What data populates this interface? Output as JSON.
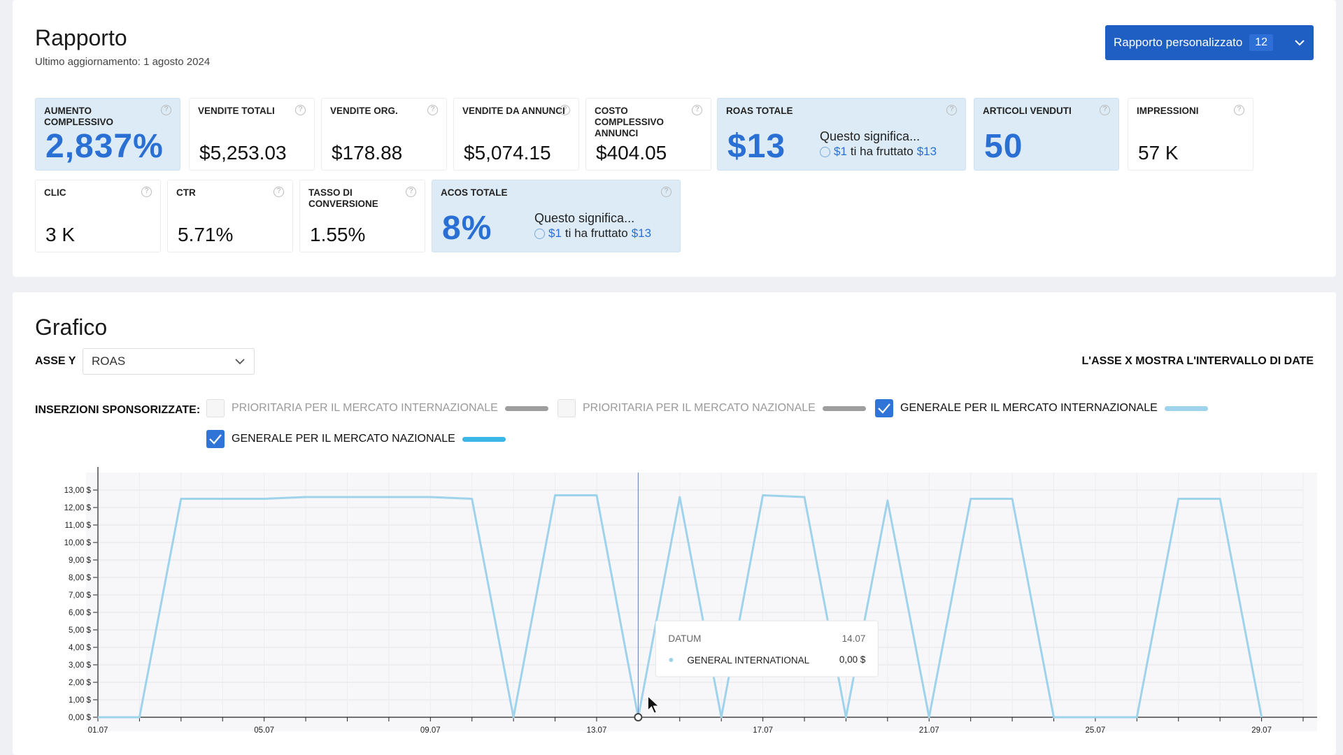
{
  "header": {
    "title": "Rapporto",
    "last_update": "Ultimo aggiornamento: 1 agosto 2024",
    "custom_report_label": "Rapporto personalizzato",
    "custom_report_count": "12"
  },
  "metrics": {
    "aumento": {
      "label": "AUMENTO COMPLESSIVO",
      "value": "2,837%"
    },
    "vendite_totali": {
      "label": "VENDITE TOTALI",
      "value": "$5,253.03"
    },
    "vendite_org": {
      "label": "VENDITE ORG.",
      "value": "$178.88"
    },
    "vendite_annunci": {
      "label": "VENDITE DA ANNUNCI",
      "value": "$5,074.15"
    },
    "costo_annunci": {
      "label": "COSTO COMPLESSIVO ANNUNCI",
      "value": "$404.05"
    },
    "roas": {
      "label": "ROAS TOTALE",
      "value": "$13",
      "means": "Questo significa...",
      "amount_in": "$1",
      "middle": "ti ha fruttato",
      "amount_out": "$13"
    },
    "articoli": {
      "label": "ARTICOLI VENDUTI",
      "value": "50"
    },
    "impressioni": {
      "label": "IMPRESSIONI",
      "value": "57 K"
    },
    "clic": {
      "label": "CLIC",
      "value": "3 K"
    },
    "ctr": {
      "label": "CTR",
      "value": "5.71%"
    },
    "tasso": {
      "label": "TASSO DI CONVERSIONE",
      "value": "1.55%"
    },
    "acos": {
      "label": "ACOS TOTALE",
      "value": "8%",
      "means": "Questo significa...",
      "amount_in": "$1",
      "middle": "ti ha fruttato",
      "amount_out": "$13"
    }
  },
  "chart_section": {
    "title": "Grafico",
    "y_axis_label": "ASSE Y",
    "y_axis_value": "ROAS",
    "x_axis_note": "L'ASSE X MOSTRA L'INTERVALLO DI DATE",
    "legend_title": "INSERZIONI SPONSORIZZATE:",
    "legend": [
      {
        "label": "PRIORITARIA PER IL MERCATO INTERNAZIONALE",
        "checked": false,
        "color": "#9e9e9e"
      },
      {
        "label": "PRIORITARIA PER IL MERCATO NAZIONALE",
        "checked": false,
        "color": "#9e9e9e"
      },
      {
        "label": "GENERALE PER IL MERCATO INTERNAZIONALE",
        "checked": true,
        "color": "#9fd3ec"
      },
      {
        "label": "GENERALE PER IL MERCATO NAZIONALE",
        "checked": true,
        "color": "#3bb6e6"
      }
    ]
  },
  "colors": {
    "accent": "#2a6fd4",
    "button": "#1f5fc4",
    "highlight_card": "#dcebf6",
    "line": "#9fd3ec"
  },
  "chart_data": {
    "type": "line",
    "title": "",
    "xlabel": "",
    "ylabel": "",
    "ylim": [
      0,
      14
    ],
    "x_range": [
      1,
      30
    ],
    "x_ticks": [
      {
        "v": 1,
        "label": "01.07"
      },
      {
        "v": 5,
        "label": "05.07"
      },
      {
        "v": 9,
        "label": "09.07"
      },
      {
        "v": 13,
        "label": "13.07"
      },
      {
        "v": 17,
        "label": "17.07"
      },
      {
        "v": 21,
        "label": "21.07"
      },
      {
        "v": 25,
        "label": "25.07"
      },
      {
        "v": 29,
        "label": "29.07"
      }
    ],
    "y_ticks": [
      0,
      1,
      2,
      3,
      4,
      5,
      6,
      7,
      8,
      9,
      10,
      11,
      12,
      13
    ],
    "y_tick_labels": [
      "0,00 $",
      "1,00 $",
      "2,00 $",
      "3,00 $",
      "4,00 $",
      "5,00 $",
      "6,00 $",
      "7,00 $",
      "8,00 $",
      "9,00 $",
      "10,00 $",
      "11,00 $",
      "12,00 $",
      "13,00 $"
    ],
    "series": [
      {
        "name": "GENERAL INTERNATIONAL",
        "color": "#9fd3ec",
        "points": [
          [
            1,
            0
          ],
          [
            2,
            0
          ],
          [
            3,
            12.5
          ],
          [
            5,
            12.5
          ],
          [
            6,
            12.6
          ],
          [
            8,
            12.6
          ],
          [
            9,
            12.6
          ],
          [
            10,
            12.5
          ],
          [
            11,
            0
          ],
          [
            12,
            12.7
          ],
          [
            13,
            12.7
          ],
          [
            14,
            0
          ],
          [
            15,
            12.6
          ],
          [
            16,
            0
          ],
          [
            17,
            12.7
          ],
          [
            18,
            12.6
          ],
          [
            19,
            0
          ],
          [
            20,
            12.4
          ],
          [
            21,
            0
          ],
          [
            22,
            12.5
          ],
          [
            23,
            12.5
          ],
          [
            24,
            0
          ],
          [
            26,
            0
          ],
          [
            27,
            12.5
          ],
          [
            28,
            12.5
          ],
          [
            29,
            0
          ]
        ]
      }
    ],
    "cursor_x": 14,
    "tooltip": {
      "header_label": "DATUM",
      "header_value": "14.07",
      "series_label": "GENERAL INTERNATIONAL",
      "series_value": "0,00 $"
    }
  }
}
